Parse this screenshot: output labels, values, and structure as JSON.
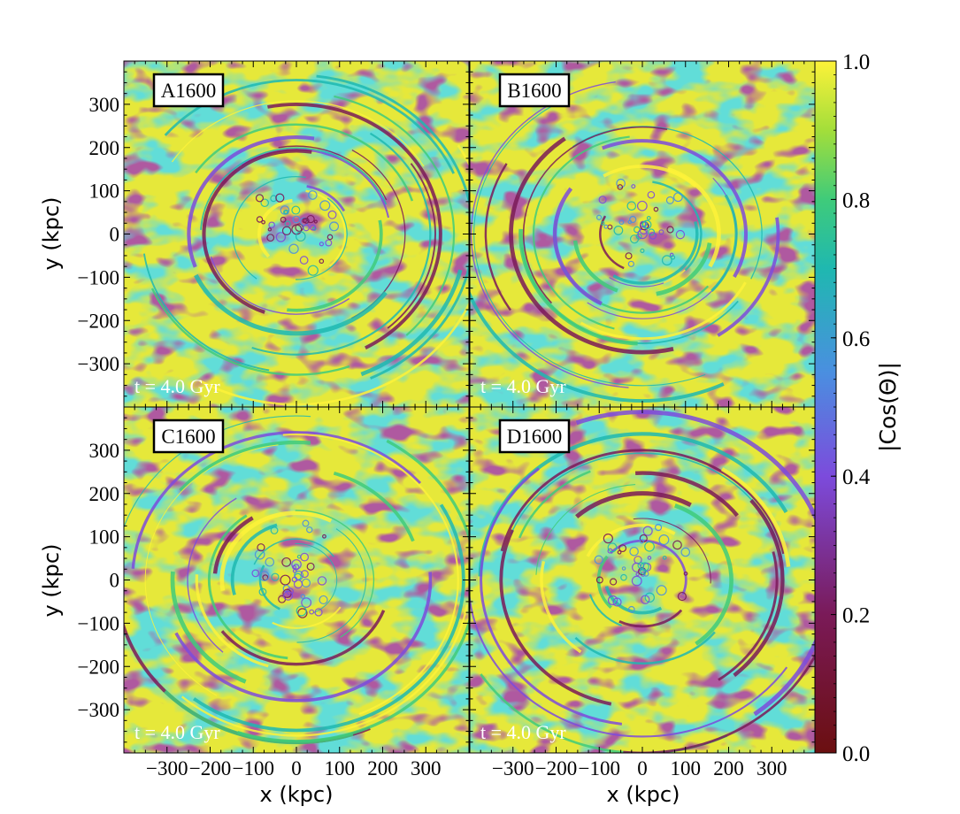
{
  "chart_data": [
    {
      "type": "heatmap",
      "panel_label": "A1600",
      "time_label": "t = 4.0 Gyr",
      "xlim": [
        -400,
        400
      ],
      "ylim": [
        -400,
        400
      ],
      "xticks": [
        -300,
        -200,
        -100,
        0,
        100,
        200,
        300
      ],
      "yticks": [
        -300,
        -200,
        -100,
        0,
        100,
        200,
        300
      ]
    },
    {
      "type": "heatmap",
      "panel_label": "B1600",
      "time_label": "t = 4.0 Gyr",
      "xlim": [
        -400,
        400
      ],
      "ylim": [
        -400,
        400
      ],
      "xticks": [
        -300,
        -200,
        -100,
        0,
        100,
        200,
        300
      ],
      "yticks": [
        -300,
        -200,
        -100,
        0,
        100,
        200,
        300
      ]
    },
    {
      "type": "heatmap",
      "panel_label": "C1600",
      "time_label": "t = 4.0 Gyr",
      "xlim": [
        -400,
        400
      ],
      "ylim": [
        -400,
        400
      ],
      "xticks": [
        -300,
        -200,
        -100,
        0,
        100,
        200,
        300
      ],
      "yticks": [
        -300,
        -200,
        -100,
        0,
        100,
        200,
        300
      ]
    },
    {
      "type": "heatmap",
      "panel_label": "D1600",
      "time_label": "t = 4.0 Gyr",
      "xlim": [
        -400,
        400
      ],
      "ylim": [
        -400,
        400
      ],
      "xticks": [
        -300,
        -200,
        -100,
        0,
        100,
        200,
        300
      ],
      "yticks": [
        -300,
        -200,
        -100,
        0,
        100,
        200,
        300
      ]
    }
  ],
  "axes": {
    "xlabel": "x  (kpc)",
    "ylabel": "y  (kpc)",
    "tick_labels": [
      "−300",
      "−200",
      "−100",
      "0",
      "100",
      "200",
      "300"
    ]
  },
  "colorbar": {
    "label": "|Cos(Θ)|",
    "range": [
      0.0,
      1.0
    ],
    "ticks": [
      "0.0",
      "0.2",
      "0.4",
      "0.6",
      "0.8",
      "1.0"
    ],
    "colormap": "viridis-like with dark red low end",
    "colors": [
      "#6b0f10",
      "#7a1a58",
      "#7c4bdc",
      "#4a8fe0",
      "#1fb8b0",
      "#3fcb7a",
      "#a3de3a",
      "#fdf239"
    ]
  }
}
